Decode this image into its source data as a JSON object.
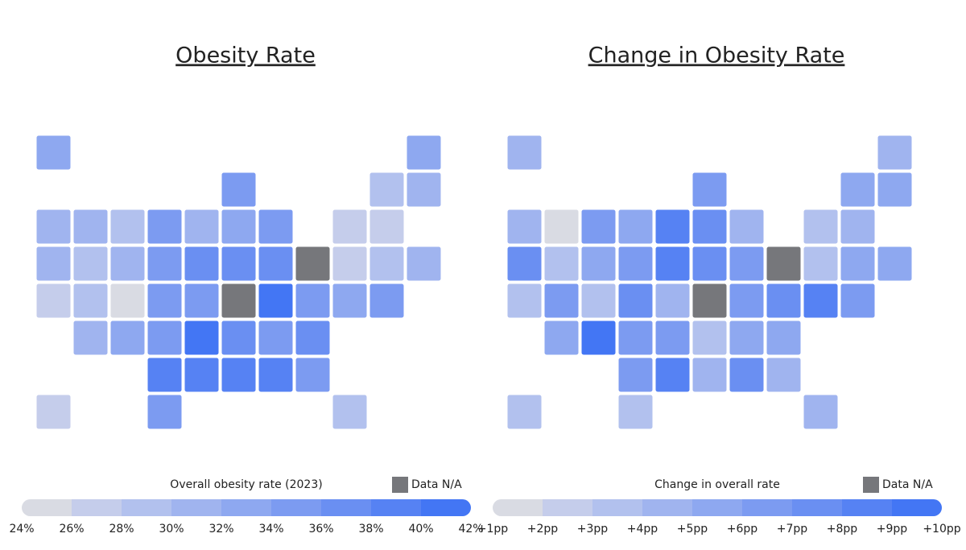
{
  "maps": [
    {
      "type": "choropleth",
      "title": "Obesity Rate",
      "legend_title": "Overall obesity rate (2023)",
      "na_label": "Data N/A",
      "na_color": "#76777b",
      "colors": [
        "#d9dbe3",
        "#c5cdeb",
        "#b2c1ee",
        "#a0b4ef",
        "#8ea8f0",
        "#7c9bf1",
        "#6a8ff2",
        "#5682f3",
        "#4376f4"
      ],
      "xlim": [
        24,
        42
      ],
      "xticks": [
        {
          "value": 24,
          "label": "24%"
        },
        {
          "value": 26,
          "label": "26%"
        },
        {
          "value": 28,
          "label": "28%"
        },
        {
          "value": 30,
          "label": "30%"
        },
        {
          "value": 32,
          "label": "32%"
        },
        {
          "value": 34,
          "label": "34%"
        },
        {
          "value": 36,
          "label": "36%"
        },
        {
          "value": 38,
          "label": "38%"
        },
        {
          "value": 40,
          "label": "40%"
        },
        {
          "value": 42,
          "label": "42%"
        }
      ],
      "values": [
        32,
        32,
        34,
        28,
        30,
        30,
        30,
        29,
        34,
        31,
        33,
        35,
        27,
        26,
        30,
        29,
        31,
        35,
        36,
        36,
        37,
        null,
        27,
        29,
        30,
        26,
        29,
        25,
        35,
        35,
        null,
        41,
        34,
        33,
        35,
        31,
        33,
        35,
        40,
        37,
        34,
        36,
        38,
        39,
        39,
        38,
        35,
        27,
        35,
        29
      ]
    },
    {
      "type": "choropleth",
      "title": "Change in Obesity Rate",
      "legend_title": "Change in overall rate",
      "na_label": "Data N/A",
      "na_color": "#76777b",
      "colors": [
        "#d9dbe3",
        "#c5cdeb",
        "#b2c1ee",
        "#a0b4ef",
        "#8ea8f0",
        "#7c9bf1",
        "#6a8ff2",
        "#5682f3",
        "#4376f4"
      ],
      "xlim": [
        1,
        10
      ],
      "xticks": [
        {
          "value": 1,
          "label": "+1pp"
        },
        {
          "value": 2,
          "label": "+2pp"
        },
        {
          "value": 3,
          "label": "+3pp"
        },
        {
          "value": 4,
          "label": "+4pp"
        },
        {
          "value": 5,
          "label": "+5pp"
        },
        {
          "value": 6,
          "label": "+6pp"
        },
        {
          "value": 7,
          "label": "+7pp"
        },
        {
          "value": 8,
          "label": "+8pp"
        },
        {
          "value": 9,
          "label": "+9pp"
        },
        {
          "value": 10,
          "label": "+10pp"
        }
      ],
      "values": [
        4.5,
        4,
        6,
        5,
        5,
        4,
        1.5,
        6.5,
        5.5,
        8.5,
        7,
        4,
        3,
        4,
        7.5,
        3.5,
        5,
        6,
        8,
        7,
        6.5,
        null,
        3,
        5,
        5,
        3,
        6,
        3,
        7,
        4,
        null,
        6,
        7.5,
        8,
        6,
        5,
        9.5,
        6,
        6,
        3.5,
        5,
        5,
        6,
        8,
        4,
        7,
        4,
        3,
        3,
        4
      ]
    }
  ]
}
